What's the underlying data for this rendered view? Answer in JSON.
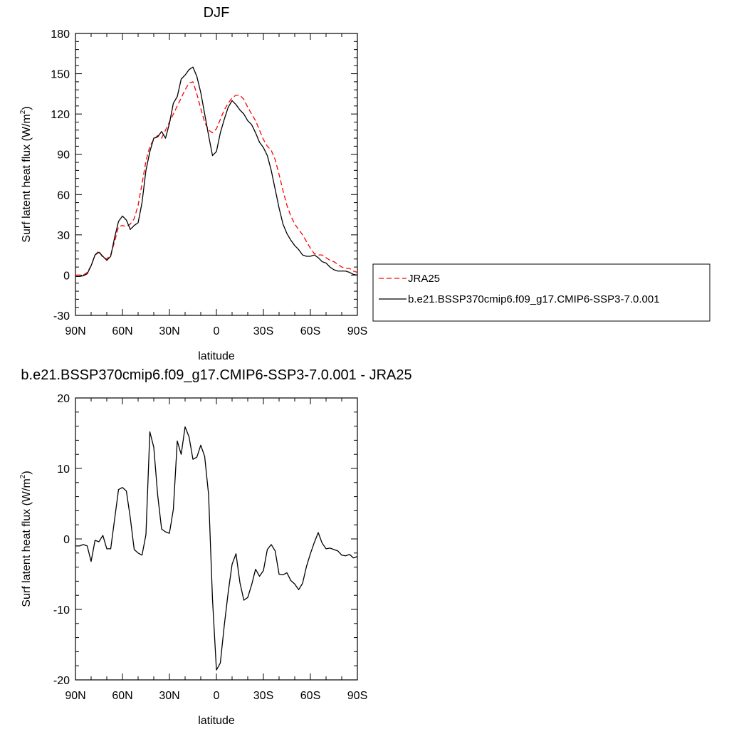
{
  "chart_data": [
    {
      "type": "line",
      "title": "DJF",
      "xlabel": "latitude",
      "ylabel": "Surf latent heat flux (W/m",
      "ylabel_sup": "2",
      "ylabel_tail": ")",
      "xlim": [
        90,
        -90
      ],
      "ylim": [
        -30,
        180
      ],
      "x_ticks": [
        90,
        60,
        30,
        0,
        -30,
        -60,
        -90
      ],
      "x_tick_labels": [
        "90N",
        "60N",
        "30N",
        "0",
        "30S",
        "60S",
        "90S"
      ],
      "y_ticks": [
        -30,
        0,
        30,
        60,
        90,
        120,
        150,
        180
      ],
      "y_tick_labels": [
        "-30",
        "0",
        "30",
        "60",
        "90",
        "120",
        "150",
        "180"
      ],
      "grid": false,
      "legend": {
        "placement": "right",
        "colors": {
          "JRA25": "#ff0000",
          "b.e21.BSSP370cmip6.f09_g17.CMIP6-SSP3-7.0.001": "#000000"
        }
      },
      "series": [
        {
          "name": "JRA25",
          "color": "#ff0000",
          "style": "dashed",
          "x": [
            90,
            87.5,
            85,
            82.5,
            80,
            77.5,
            75,
            72.5,
            70,
            67.5,
            65,
            62.5,
            60,
            57.5,
            55,
            52.5,
            50,
            47.5,
            45,
            42.5,
            40,
            37.5,
            35,
            32.5,
            30,
            27.5,
            25,
            22.5,
            20,
            17.5,
            15,
            12.5,
            10,
            7.5,
            5,
            2.5,
            0,
            -2.5,
            -5,
            -7.5,
            -10,
            -12.5,
            -15,
            -17.5,
            -20,
            -22.5,
            -25,
            -27.5,
            -30,
            -32.5,
            -35,
            -37.5,
            -40,
            -42.5,
            -45,
            -47.5,
            -50,
            -52.5,
            -55,
            -57.5,
            -60,
            -62.5,
            -65,
            -67.5,
            -70,
            -72.5,
            -75,
            -77.5,
            -80,
            -82.5,
            -85,
            -87.5,
            -90
          ],
          "y": [
            0,
            0,
            0,
            2,
            7,
            15,
            18,
            13,
            12,
            15,
            25,
            36,
            37,
            36,
            38,
            42,
            52,
            68,
            85,
            96,
            101,
            104,
            102,
            108,
            114,
            120,
            126,
            132,
            138,
            143,
            144,
            135,
            124,
            114,
            108,
            106,
            109,
            116,
            123,
            128,
            132,
            134,
            134,
            131,
            125,
            120,
            115,
            108,
            101,
            96,
            93,
            86,
            75,
            63,
            52,
            44,
            38,
            34,
            30,
            25,
            20,
            16,
            15,
            15,
            13,
            11,
            10,
            8,
            6,
            5,
            5,
            3,
            2
          ]
        },
        {
          "name": "b.e21.BSSP370cmip6.f09_g17.CMIP6-SSP3-7.0.001",
          "color": "#000000",
          "style": "solid",
          "x": [
            90,
            87.5,
            85,
            82.5,
            80,
            77.5,
            75,
            72.5,
            70,
            67.5,
            65,
            62.5,
            60,
            57.5,
            55,
            52.5,
            50,
            47.5,
            45,
            42.5,
            40,
            37.5,
            35,
            32.5,
            30,
            27.5,
            25,
            22.5,
            20,
            17.5,
            15,
            12.5,
            10,
            7.5,
            5,
            2.5,
            0,
            -2.5,
            -5,
            -7.5,
            -10,
            -12.5,
            -15,
            -17.5,
            -20,
            -22.5,
            -25,
            -27.5,
            -30,
            -32.5,
            -35,
            -37.5,
            -40,
            -42.5,
            -45,
            -47.5,
            -50,
            -52.5,
            -55,
            -57.5,
            -60,
            -62.5,
            -65,
            -67.5,
            -70,
            -72.5,
            -75,
            -77.5,
            -80,
            -82.5,
            -85,
            -87.5,
            -90
          ],
          "y": [
            -1,
            -1,
            -0.5,
            1,
            7,
            15,
            17,
            14,
            11,
            14,
            28,
            40,
            44,
            41,
            34,
            37,
            39,
            54,
            78,
            92,
            102,
            103,
            107,
            102,
            113,
            128,
            133,
            146,
            149,
            153,
            155,
            148,
            136,
            120,
            104,
            89,
            92,
            106,
            116,
            125,
            130,
            127,
            123,
            120,
            115,
            112,
            106,
            99,
            95,
            89,
            78,
            64,
            50,
            38,
            31,
            26,
            22,
            19,
            15,
            14,
            14,
            15,
            13,
            10,
            9,
            6,
            4,
            3,
            3,
            3,
            2,
            0.5,
            0
          ]
        }
      ]
    },
    {
      "type": "line",
      "title": "b.e21.BSSP370cmip6.f09_g17.CMIP6-SSP3-7.0.001 - JRA25",
      "xlabel": "latitude",
      "ylabel": "Surf latent heat flux (W/m",
      "ylabel_sup": "2",
      "ylabel_tail": ")",
      "xlim": [
        90,
        -90
      ],
      "ylim": [
        -20,
        20
      ],
      "x_ticks": [
        90,
        60,
        30,
        0,
        -30,
        -60,
        -90
      ],
      "x_tick_labels": [
        "90N",
        "60N",
        "30N",
        "0",
        "30S",
        "60S",
        "90S"
      ],
      "y_ticks": [
        -20,
        -10,
        0,
        10,
        20
      ],
      "y_tick_labels": [
        "-20",
        "-10",
        "0",
        "10",
        "20"
      ],
      "grid": false,
      "series": [
        {
          "color": "#000000",
          "style": "solid",
          "x": [
            90,
            87.5,
            85,
            82.5,
            80,
            77.5,
            75,
            72.5,
            70,
            67.5,
            65,
            62.5,
            60,
            57.5,
            55,
            52.5,
            50,
            47.5,
            45,
            42.5,
            40,
            37.5,
            35,
            32.5,
            30,
            27.5,
            25,
            22.5,
            20,
            17.5,
            15,
            12.5,
            10,
            7.5,
            5,
            2.5,
            0,
            -2.5,
            -5,
            -7.5,
            -10,
            -12.5,
            -15,
            -17.5,
            -20,
            -22.5,
            -25,
            -27.5,
            -30,
            -32.5,
            -35,
            -37.5,
            -40,
            -42.5,
            -45,
            -47.5,
            -50,
            -52.5,
            -55,
            -57.5,
            -60,
            -62.5,
            -65,
            -67.5,
            -70,
            -72.5,
            -75,
            -77.5,
            -80,
            -82.5,
            -85,
            -87.5,
            -90
          ],
          "y": [
            -1,
            -1,
            -0.8,
            -1,
            -3.2,
            -0.2,
            -0.4,
            0.5,
            -1.4,
            -1.4,
            2.8,
            7,
            7.3,
            6.8,
            3,
            -1.5,
            -2,
            -2.3,
            0.6,
            15.2,
            13,
            6.2,
            1.4,
            1,
            0.8,
            4.2,
            13.9,
            12,
            15.9,
            14.5,
            11.3,
            11.6,
            13.3,
            11.7,
            6.3,
            -8.6,
            -18.6,
            -17.6,
            -12.3,
            -7.6,
            -3.6,
            -2.1,
            -6.2,
            -8.7,
            -8.3,
            -6.5,
            -4.3,
            -5.3,
            -4.5,
            -1.5,
            -0.8,
            -1.7,
            -5,
            -5.1,
            -4.8,
            -5.9,
            -6.4,
            -7.2,
            -6.3,
            -3.9,
            -2.1,
            -0.5,
            0.9,
            -0.6,
            -1.4,
            -1.3,
            -1.5,
            -1.7,
            -2.3,
            -2.4,
            -2.2,
            -2.7,
            -2.5
          ]
        }
      ]
    }
  ]
}
